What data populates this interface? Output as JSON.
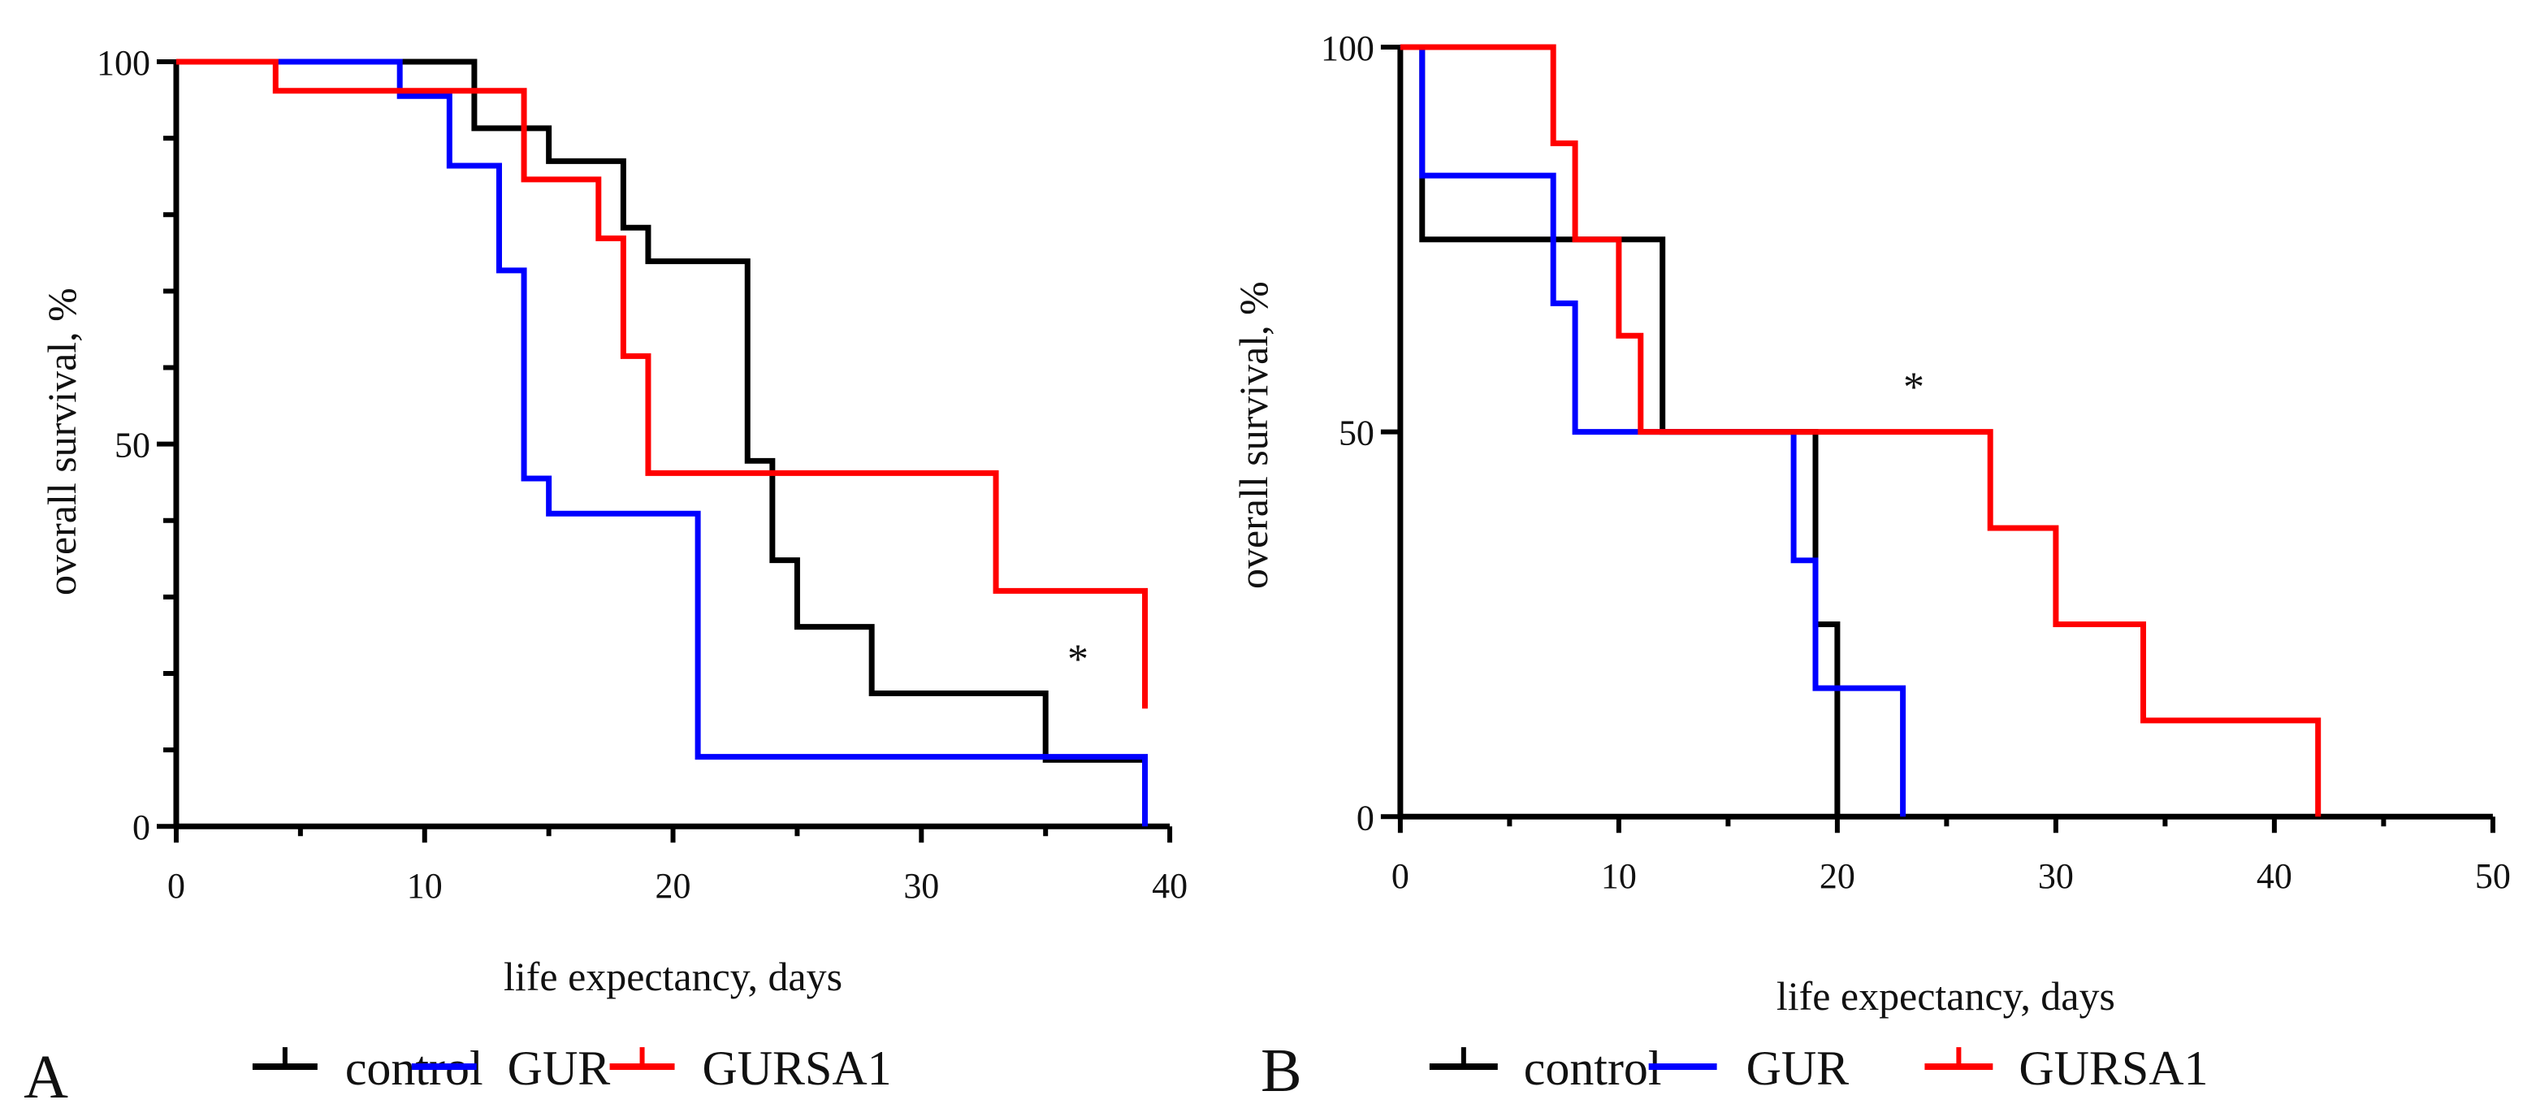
{
  "chart_data": [
    {
      "type": "line",
      "subtype": "kaplan-meier step",
      "panel_label": "A",
      "xlabel": "life expectancy, days",
      "ylabel": "overall survival, %",
      "xlim": [
        0,
        40
      ],
      "ylim": [
        0,
        100
      ],
      "xticks": [
        "0",
        "10",
        "20",
        "30",
        "40"
      ],
      "yticks": [
        "0",
        "50",
        "100"
      ],
      "annotation": {
        "text": "*",
        "x": 36.3,
        "y": 23
      },
      "series": [
        {
          "name": "control",
          "color": "#000000",
          "end": 39,
          "steps": [
            [
              12,
              91.3
            ],
            [
              15,
              87.0
            ],
            [
              18,
              78.3
            ],
            [
              19,
              73.9
            ],
            [
              23,
              47.8
            ],
            [
              24,
              34.8
            ],
            [
              25,
              26.1
            ],
            [
              28,
              17.4
            ],
            [
              35,
              8.7
            ]
          ]
        },
        {
          "name": "GUR",
          "color": "#0000ff",
          "end": 39,
          "steps": [
            [
              9,
              95.5
            ],
            [
              11,
              86.4
            ],
            [
              13,
              72.7
            ],
            [
              14,
              45.5
            ],
            [
              15,
              40.9
            ],
            [
              21,
              9.1
            ],
            [
              39,
              0
            ]
          ]
        },
        {
          "name": "GURSA1",
          "color": "#ff0000",
          "end": 39,
          "steps": [
            [
              4,
              96.2
            ],
            [
              14,
              84.6
            ],
            [
              17,
              76.9
            ],
            [
              18,
              61.5
            ],
            [
              19,
              46.2
            ],
            [
              33,
              30.8
            ],
            [
              39,
              15.4
            ]
          ]
        }
      ],
      "legend": [
        "control",
        "GUR",
        "GURSA1"
      ],
      "legend_placement": "bottom"
    },
    {
      "type": "line",
      "subtype": "kaplan-meier step",
      "panel_label": "B",
      "xlabel": "life expectancy, days",
      "ylabel": "overall survival, %",
      "xlim": [
        0,
        50
      ],
      "ylim": [
        0,
        100
      ],
      "xticks": [
        "0",
        "10",
        "20",
        "30",
        "40",
        "50"
      ],
      "yticks": [
        "0",
        "50",
        "100"
      ],
      "annotation": {
        "text": "*",
        "x": 23.5,
        "y": 57
      },
      "series": [
        {
          "name": "control",
          "color": "#000000",
          "end": 20,
          "steps": [
            [
              1,
              75
            ],
            [
              12,
              50
            ],
            [
              19,
              25
            ],
            [
              20,
              0
            ]
          ]
        },
        {
          "name": "GUR",
          "color": "#0000ff",
          "end": 23,
          "steps": [
            [
              1,
              83.3
            ],
            [
              7,
              66.7
            ],
            [
              8,
              50
            ],
            [
              18,
              33.3
            ],
            [
              19,
              16.7
            ],
            [
              23,
              0
            ]
          ]
        },
        {
          "name": "GURSA1",
          "color": "#ff0000",
          "end": 42,
          "steps": [
            [
              7,
              87.5
            ],
            [
              8,
              75
            ],
            [
              10,
              62.5
            ],
            [
              11,
              50
            ],
            [
              27,
              37.5
            ],
            [
              30,
              25
            ],
            [
              34,
              12.5
            ],
            [
              42,
              0
            ]
          ]
        }
      ],
      "legend": [
        "control",
        "GUR",
        "GURSA1"
      ],
      "legend_placement": "bottom"
    }
  ]
}
